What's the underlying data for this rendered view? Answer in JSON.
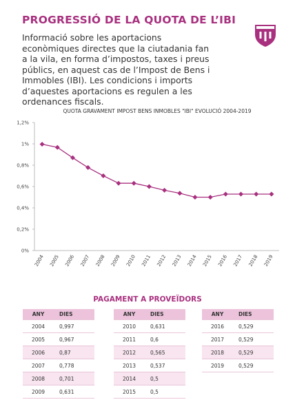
{
  "header": {
    "title": "PROGRESSIÓ DE LA QUOTA DE L’IBI",
    "intro": "Informació sobre les aportacions econòmiques directes que la ciutadania fan a la vila, en forma d’impostos, taxes i preus públics, en aquest cas de l’Impost de Bens i Immobles (IBI). Les condicions i imports d’aquestes aportacions es regulen a les ordenances fiscals."
  },
  "chart_data": {
    "type": "line",
    "title": "QUOTA GRAVAMENT IMPOST BENS INMOBLES \"IBI\" EVOLUCIÓ 2004-2019",
    "categories": [
      "2004",
      "2005",
      "2006",
      "2007",
      "2008",
      "2009",
      "2010",
      "2011",
      "2012",
      "2013",
      "2014",
      "2015",
      "2016",
      "2017",
      "2018",
      "2019"
    ],
    "series": [
      {
        "name": "IBI",
        "color": "#a8307f",
        "values": [
          0.997,
          0.967,
          0.87,
          0.778,
          0.701,
          0.631,
          0.631,
          0.6,
          0.565,
          0.537,
          0.5,
          0.5,
          0.529,
          0.529,
          0.529,
          0.529
        ]
      }
    ],
    "ylim": [
      0,
      1.2
    ],
    "yticks": [
      {
        "value": 0,
        "label": "0%"
      },
      {
        "value": 0.2,
        "label": "0,2%"
      },
      {
        "value": 0.4,
        "label": "0,4%"
      },
      {
        "value": 0.6,
        "label": "0,6%"
      },
      {
        "value": 0.8,
        "label": "0,8%"
      },
      {
        "value": 1,
        "label": "1%"
      },
      {
        "value": 1.2,
        "label": "1,2%"
      }
    ],
    "grid": false
  },
  "payments": {
    "title": "PAGAMENT A PROVEÏDORS",
    "tables": [
      {
        "header": [
          "ANY",
          "DIES"
        ],
        "rows": [
          [
            "2004",
            "0,997"
          ],
          [
            "2005",
            "0,967"
          ],
          [
            "2006",
            "0,87"
          ],
          [
            "2007",
            "0,778"
          ],
          [
            "2008",
            "0,701"
          ],
          [
            "2009",
            "0,631"
          ]
        ]
      },
      {
        "header": [
          "ANY",
          "DIES"
        ],
        "rows": [
          [
            "2010",
            "0,631"
          ],
          [
            "2011",
            "0,6"
          ],
          [
            "2012",
            "0,565"
          ],
          [
            "2013",
            "0,537"
          ],
          [
            "2014",
            "0,5"
          ],
          [
            "2015",
            "0,5"
          ]
        ]
      },
      {
        "header": [
          "ANY",
          "DIES"
        ],
        "rows": [
          [
            "2016",
            "0,529"
          ],
          [
            "2017",
            "0,529"
          ],
          [
            "2018",
            "0,529"
          ],
          [
            "2019",
            "0,529"
          ]
        ]
      }
    ]
  }
}
